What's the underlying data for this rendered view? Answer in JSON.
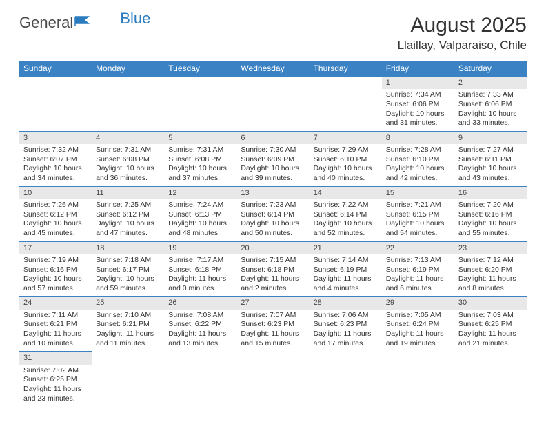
{
  "logo": {
    "part1": "General",
    "part2": "Blue"
  },
  "title": "August 2025",
  "location": "Llaillay, Valparaiso, Chile",
  "colors": {
    "header_bg": "#3b82c4",
    "header_text": "#ffffff",
    "daynum_bg": "#e8e8e8",
    "row_border": "#3b82c4",
    "logo_gray": "#4a4a4a",
    "logo_blue": "#2b7bbf"
  },
  "dayHeaders": [
    "Sunday",
    "Monday",
    "Tuesday",
    "Wednesday",
    "Thursday",
    "Friday",
    "Saturday"
  ],
  "weeks": [
    [
      null,
      null,
      null,
      null,
      null,
      {
        "n": "1",
        "sr": "Sunrise: 7:34 AM",
        "ss": "Sunset: 6:06 PM",
        "d1": "Daylight: 10 hours",
        "d2": "and 31 minutes."
      },
      {
        "n": "2",
        "sr": "Sunrise: 7:33 AM",
        "ss": "Sunset: 6:06 PM",
        "d1": "Daylight: 10 hours",
        "d2": "and 33 minutes."
      }
    ],
    [
      {
        "n": "3",
        "sr": "Sunrise: 7:32 AM",
        "ss": "Sunset: 6:07 PM",
        "d1": "Daylight: 10 hours",
        "d2": "and 34 minutes."
      },
      {
        "n": "4",
        "sr": "Sunrise: 7:31 AM",
        "ss": "Sunset: 6:08 PM",
        "d1": "Daylight: 10 hours",
        "d2": "and 36 minutes."
      },
      {
        "n": "5",
        "sr": "Sunrise: 7:31 AM",
        "ss": "Sunset: 6:08 PM",
        "d1": "Daylight: 10 hours",
        "d2": "and 37 minutes."
      },
      {
        "n": "6",
        "sr": "Sunrise: 7:30 AM",
        "ss": "Sunset: 6:09 PM",
        "d1": "Daylight: 10 hours",
        "d2": "and 39 minutes."
      },
      {
        "n": "7",
        "sr": "Sunrise: 7:29 AM",
        "ss": "Sunset: 6:10 PM",
        "d1": "Daylight: 10 hours",
        "d2": "and 40 minutes."
      },
      {
        "n": "8",
        "sr": "Sunrise: 7:28 AM",
        "ss": "Sunset: 6:10 PM",
        "d1": "Daylight: 10 hours",
        "d2": "and 42 minutes."
      },
      {
        "n": "9",
        "sr": "Sunrise: 7:27 AM",
        "ss": "Sunset: 6:11 PM",
        "d1": "Daylight: 10 hours",
        "d2": "and 43 minutes."
      }
    ],
    [
      {
        "n": "10",
        "sr": "Sunrise: 7:26 AM",
        "ss": "Sunset: 6:12 PM",
        "d1": "Daylight: 10 hours",
        "d2": "and 45 minutes."
      },
      {
        "n": "11",
        "sr": "Sunrise: 7:25 AM",
        "ss": "Sunset: 6:12 PM",
        "d1": "Daylight: 10 hours",
        "d2": "and 47 minutes."
      },
      {
        "n": "12",
        "sr": "Sunrise: 7:24 AM",
        "ss": "Sunset: 6:13 PM",
        "d1": "Daylight: 10 hours",
        "d2": "and 48 minutes."
      },
      {
        "n": "13",
        "sr": "Sunrise: 7:23 AM",
        "ss": "Sunset: 6:14 PM",
        "d1": "Daylight: 10 hours",
        "d2": "and 50 minutes."
      },
      {
        "n": "14",
        "sr": "Sunrise: 7:22 AM",
        "ss": "Sunset: 6:14 PM",
        "d1": "Daylight: 10 hours",
        "d2": "and 52 minutes."
      },
      {
        "n": "15",
        "sr": "Sunrise: 7:21 AM",
        "ss": "Sunset: 6:15 PM",
        "d1": "Daylight: 10 hours",
        "d2": "and 54 minutes."
      },
      {
        "n": "16",
        "sr": "Sunrise: 7:20 AM",
        "ss": "Sunset: 6:16 PM",
        "d1": "Daylight: 10 hours",
        "d2": "and 55 minutes."
      }
    ],
    [
      {
        "n": "17",
        "sr": "Sunrise: 7:19 AM",
        "ss": "Sunset: 6:16 PM",
        "d1": "Daylight: 10 hours",
        "d2": "and 57 minutes."
      },
      {
        "n": "18",
        "sr": "Sunrise: 7:18 AM",
        "ss": "Sunset: 6:17 PM",
        "d1": "Daylight: 10 hours",
        "d2": "and 59 minutes."
      },
      {
        "n": "19",
        "sr": "Sunrise: 7:17 AM",
        "ss": "Sunset: 6:18 PM",
        "d1": "Daylight: 11 hours",
        "d2": "and 0 minutes."
      },
      {
        "n": "20",
        "sr": "Sunrise: 7:15 AM",
        "ss": "Sunset: 6:18 PM",
        "d1": "Daylight: 11 hours",
        "d2": "and 2 minutes."
      },
      {
        "n": "21",
        "sr": "Sunrise: 7:14 AM",
        "ss": "Sunset: 6:19 PM",
        "d1": "Daylight: 11 hours",
        "d2": "and 4 minutes."
      },
      {
        "n": "22",
        "sr": "Sunrise: 7:13 AM",
        "ss": "Sunset: 6:19 PM",
        "d1": "Daylight: 11 hours",
        "d2": "and 6 minutes."
      },
      {
        "n": "23",
        "sr": "Sunrise: 7:12 AM",
        "ss": "Sunset: 6:20 PM",
        "d1": "Daylight: 11 hours",
        "d2": "and 8 minutes."
      }
    ],
    [
      {
        "n": "24",
        "sr": "Sunrise: 7:11 AM",
        "ss": "Sunset: 6:21 PM",
        "d1": "Daylight: 11 hours",
        "d2": "and 10 minutes."
      },
      {
        "n": "25",
        "sr": "Sunrise: 7:10 AM",
        "ss": "Sunset: 6:21 PM",
        "d1": "Daylight: 11 hours",
        "d2": "and 11 minutes."
      },
      {
        "n": "26",
        "sr": "Sunrise: 7:08 AM",
        "ss": "Sunset: 6:22 PM",
        "d1": "Daylight: 11 hours",
        "d2": "and 13 minutes."
      },
      {
        "n": "27",
        "sr": "Sunrise: 7:07 AM",
        "ss": "Sunset: 6:23 PM",
        "d1": "Daylight: 11 hours",
        "d2": "and 15 minutes."
      },
      {
        "n": "28",
        "sr": "Sunrise: 7:06 AM",
        "ss": "Sunset: 6:23 PM",
        "d1": "Daylight: 11 hours",
        "d2": "and 17 minutes."
      },
      {
        "n": "29",
        "sr": "Sunrise: 7:05 AM",
        "ss": "Sunset: 6:24 PM",
        "d1": "Daylight: 11 hours",
        "d2": "and 19 minutes."
      },
      {
        "n": "30",
        "sr": "Sunrise: 7:03 AM",
        "ss": "Sunset: 6:25 PM",
        "d1": "Daylight: 11 hours",
        "d2": "and 21 minutes."
      }
    ],
    [
      {
        "n": "31",
        "sr": "Sunrise: 7:02 AM",
        "ss": "Sunset: 6:25 PM",
        "d1": "Daylight: 11 hours",
        "d2": "and 23 minutes."
      },
      null,
      null,
      null,
      null,
      null,
      null
    ]
  ]
}
